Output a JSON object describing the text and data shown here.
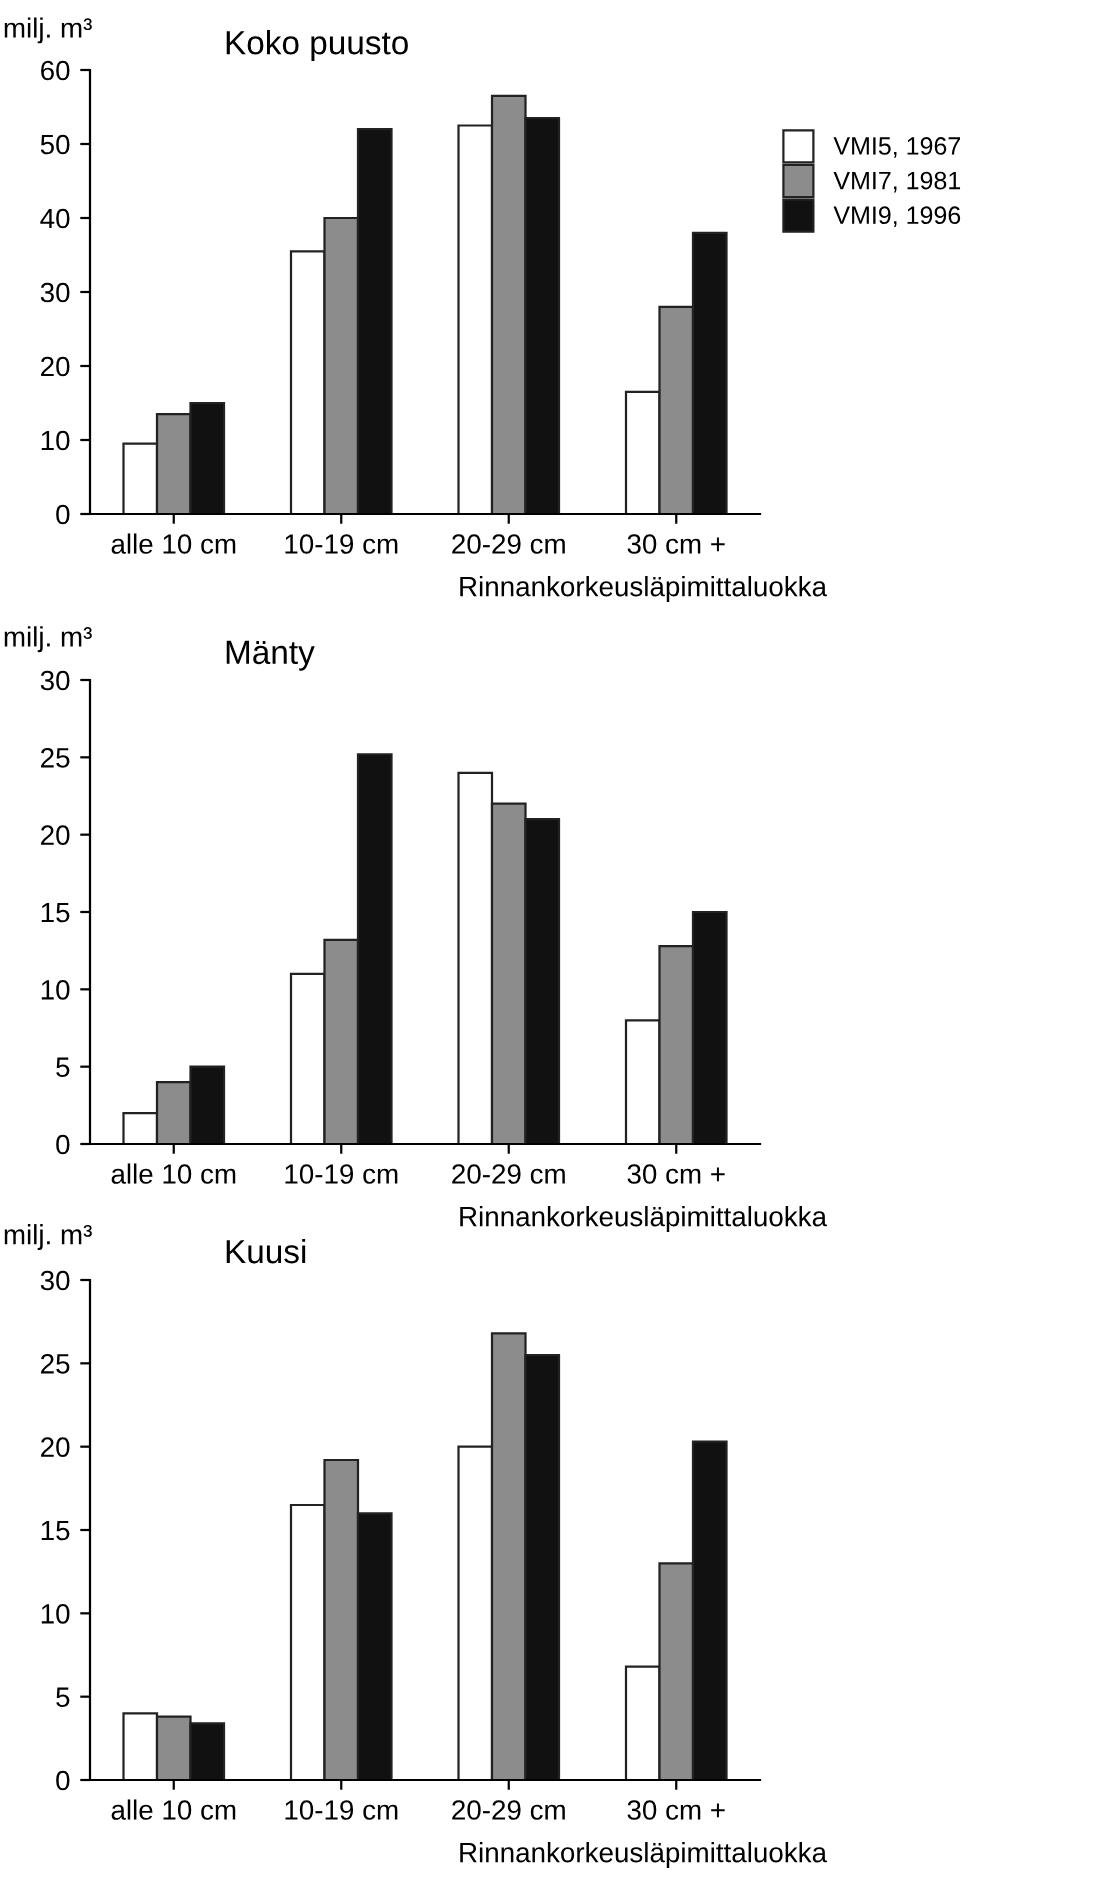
{
  "chart_data": [
    {
      "type": "bar",
      "title": "Koko puusto",
      "ylabel": "milj. m³",
      "xlabel": "Rinnankorkeusläpimittaluokka",
      "categories": [
        "alle 10 cm",
        "10-19 cm",
        "20-29 cm",
        "30 cm +"
      ],
      "series": [
        {
          "name": "VMI5, 1967",
          "color": "#ffffff",
          "values": [
            9.5,
            35.5,
            52.5,
            16.5
          ]
        },
        {
          "name": "VMI7, 1981",
          "color": "#8c8c8c",
          "values": [
            13.5,
            40,
            56.5,
            28
          ]
        },
        {
          "name": "VMI9, 1996",
          "color": "#111111",
          "values": [
            15,
            52,
            53.5,
            38
          ]
        }
      ],
      "ylim": [
        0,
        60
      ],
      "yticks": [
        0,
        10,
        20,
        30,
        40,
        50,
        60
      ],
      "grid": false,
      "legend": "right"
    },
    {
      "type": "bar",
      "title": "Mänty",
      "ylabel": "milj. m³",
      "xlabel": "Rinnankorkeusläpimittaluokka",
      "categories": [
        "alle 10 cm",
        "10-19 cm",
        "20-29 cm",
        "30 cm +"
      ],
      "series": [
        {
          "color": "#ffffff",
          "values": [
            2,
            11,
            24,
            8
          ]
        },
        {
          "color": "#8c8c8c",
          "values": [
            4,
            13.2,
            22,
            12.8
          ]
        },
        {
          "color": "#111111",
          "values": [
            5,
            25.2,
            21,
            15
          ]
        }
      ],
      "ylim": [
        0,
        30
      ],
      "yticks": [
        0,
        5,
        10,
        15,
        20,
        25,
        30
      ],
      "grid": false,
      "legend": false
    },
    {
      "type": "bar",
      "title": "Kuusi",
      "ylabel": "milj. m³",
      "xlabel": "Rinnankorkeusläpimittaluokka",
      "categories": [
        "alle 10 cm",
        "10-19 cm",
        "20-29 cm",
        "30 cm +"
      ],
      "series": [
        {
          "color": "#ffffff",
          "values": [
            4,
            16.5,
            20,
            6.8
          ]
        },
        {
          "color": "#8c8c8c",
          "values": [
            3.8,
            19.2,
            26.8,
            13
          ]
        },
        {
          "color": "#111111",
          "values": [
            3.4,
            16,
            25.5,
            20.3
          ]
        }
      ],
      "ylim": [
        0,
        30
      ],
      "yticks": [
        0,
        5,
        10,
        15,
        20,
        25,
        30
      ],
      "grid": false,
      "legend": false
    }
  ]
}
